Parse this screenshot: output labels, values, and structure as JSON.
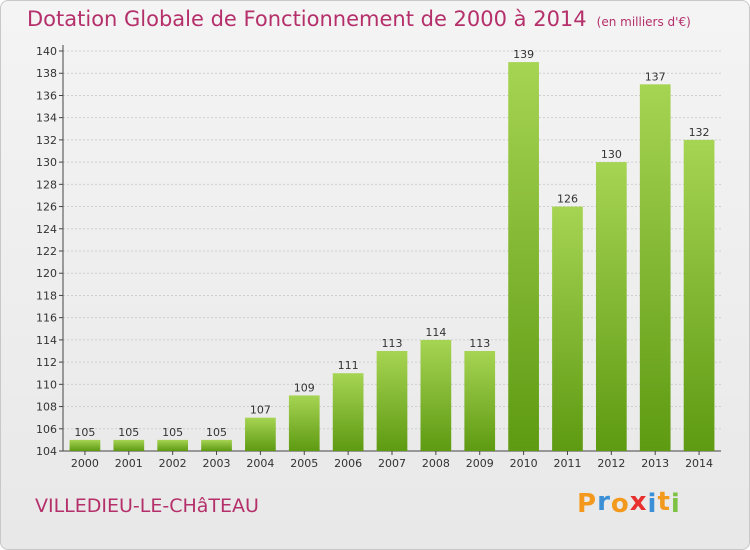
{
  "header": {
    "title": "Dotation Globale de Fonctionnement de 2000 à 2014",
    "unit": "(en milliers d'€)"
  },
  "footer": {
    "location": "VILLEDIEU-LE-CHâTEAU",
    "logo_letters": [
      "P",
      "r",
      "o",
      "x",
      "i",
      "t",
      "i"
    ],
    "logo_colors": [
      "#f39a1e",
      "#3b8fd6",
      "#f39a1e",
      "#e8312f",
      "#3b8fd6",
      "#f39a1e",
      "#7dc242"
    ]
  },
  "colors": {
    "bar_top": "#a6d453",
    "bar_bottom": "#5e9a12",
    "title": "#b5306a"
  },
  "chart_data": {
    "type": "bar",
    "categories": [
      "2000",
      "2001",
      "2002",
      "2003",
      "2004",
      "2005",
      "2006",
      "2007",
      "2008",
      "2009",
      "2010",
      "2011",
      "2012",
      "2013",
      "2014"
    ],
    "values": [
      105,
      105,
      105,
      105,
      107,
      109,
      111,
      113,
      114,
      113,
      139,
      126,
      130,
      137,
      132
    ],
    "yticks": [
      "104",
      "106",
      "108",
      "110",
      "112",
      "114",
      "116",
      "118",
      "120",
      "122",
      "124",
      "126",
      "128",
      "130",
      "132",
      "134",
      "136",
      "138",
      "140"
    ],
    "ylim": [
      104,
      140
    ],
    "grid": "horizontal",
    "legend": "none"
  }
}
